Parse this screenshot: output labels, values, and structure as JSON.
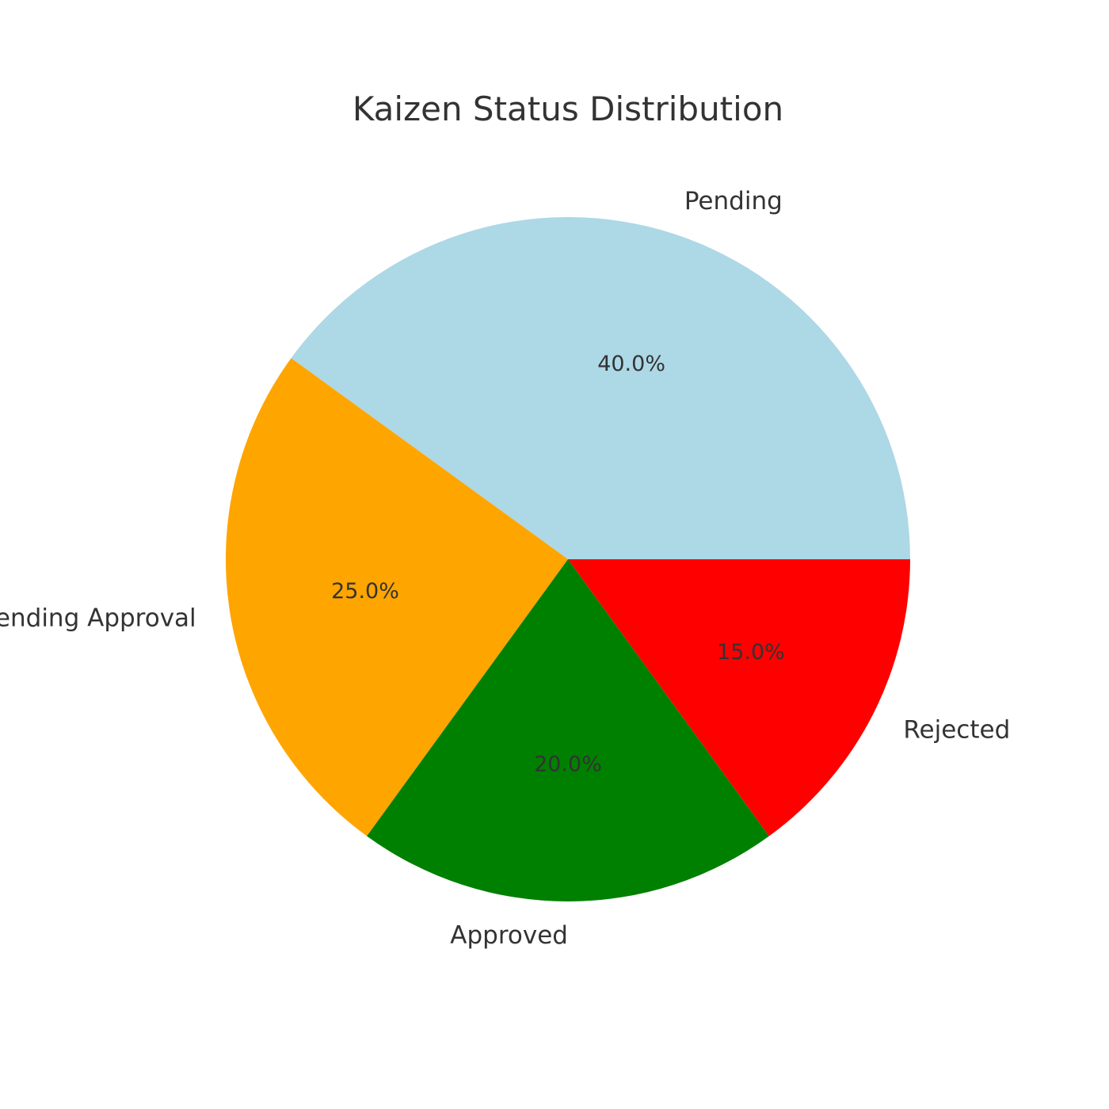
{
  "chart_data": {
    "type": "pie",
    "title": "Kaizen Status Distribution",
    "categories": [
      "Pending",
      "Pending Approval",
      "Approved",
      "Rejected"
    ],
    "values": [
      40.0,
      25.0,
      20.0,
      15.0
    ],
    "percent_labels": [
      "40.0%",
      "25.0%",
      "20.0%",
      "15.0%"
    ],
    "colors": [
      "#add8e6",
      "#ffa500",
      "#008000",
      "#ff0000"
    ],
    "start_angle_deg": 0,
    "direction": "counterclockwise",
    "legend": "none"
  }
}
